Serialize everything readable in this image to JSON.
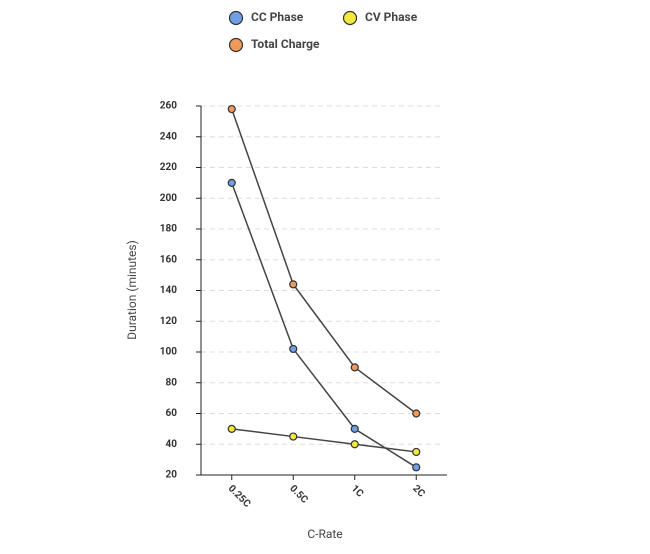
{
  "chart_data": {
    "type": "line",
    "x_label": "C-Rate",
    "y_label": "Duration (minutes)",
    "categories": [
      "0.25C",
      "0.5C",
      "1C",
      "2C"
    ],
    "series": [
      {
        "name": "CC Phase",
        "color": "#6f9fe6",
        "values": [
          210,
          102,
          50,
          25
        ]
      },
      {
        "name": "CV Phase",
        "color": "#f3e83b",
        "values": [
          50,
          45,
          40,
          35
        ]
      },
      {
        "name": "Total Charge",
        "color": "#ef9a5a",
        "values": [
          258,
          144,
          90,
          60
        ]
      }
    ],
    "ylim": [
      20,
      260
    ],
    "yticks": [
      20,
      40,
      60,
      80,
      100,
      120,
      140,
      160,
      180,
      200,
      220,
      240,
      260
    ],
    "grid": true
  }
}
